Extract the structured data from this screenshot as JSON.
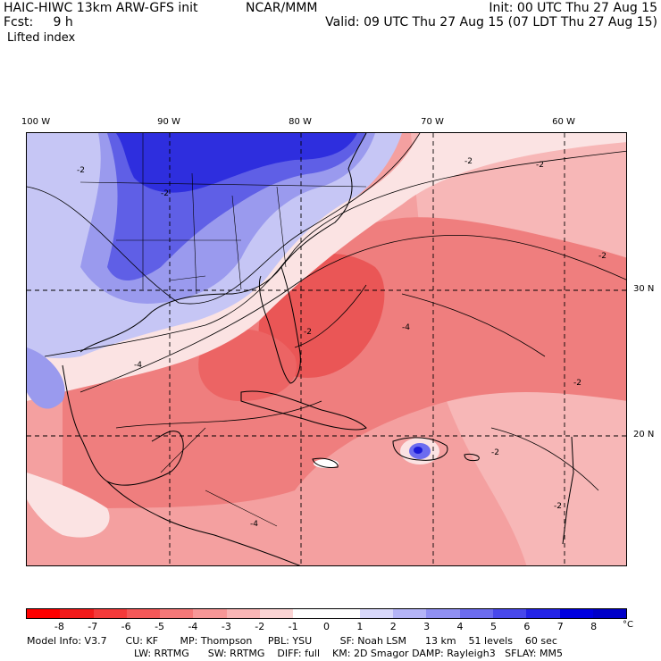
{
  "header": {
    "line1_left": "HAIC-HIWC 13km ARW-GFS init",
    "line1_center": "NCAR/MMM",
    "line1_right": "Init: 00 UTC Thu 27 Aug 15",
    "fcst_label": "Fcst:",
    "fcst_value": "9 h",
    "line2_right": "Valid: 09 UTC Thu 27 Aug 15 (07 LDT Thu 27 Aug 15)",
    "variable": "Lifted index"
  },
  "map": {
    "longitude_labels": [
      "100 W",
      "90 W",
      "80 W",
      "70 W",
      "60 W"
    ],
    "latitude_labels": [
      "30 N",
      "20 N"
    ],
    "contour_labels": [
      "-2",
      "-2",
      "-2",
      "-4",
      "-2",
      "-2",
      "-4",
      "-2",
      "-2",
      "-2",
      "-4",
      "-2"
    ]
  },
  "colorbar": {
    "unit": "°C",
    "tick_labels": [
      "-8",
      "-7",
      "-6",
      "-5",
      "-4",
      "-3",
      "-2",
      "-1",
      "0",
      "1",
      "2",
      "3",
      "4",
      "5",
      "6",
      "7",
      "8"
    ],
    "colors": [
      "#ff0000",
      "#f31a1a",
      "#f53a3a",
      "#f55858",
      "#f57878",
      "#f79797",
      "#f9b5b5",
      "#fbd4d4",
      "#ffffff",
      "#ffffff",
      "#d8d8fb",
      "#b4b4f7",
      "#9090f3",
      "#6c6cef",
      "#4848eb",
      "#2424e7",
      "#0000e0",
      "#0000c8"
    ]
  },
  "footer": {
    "line1": "Model Info: V3.7      CU: KF       MP: Thompson     PBL: YSU         SF: Noah LSM      13 km    51 levels    60 sec",
    "line2": "LW: RRTMG      SW: RRTMG    DIFF: full    KM: 2D Smagor DAMP: Rayleigh3   SFLAY: MM5"
  }
}
